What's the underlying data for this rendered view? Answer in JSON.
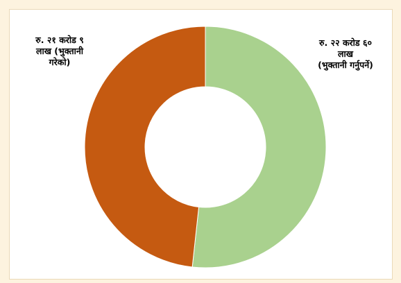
{
  "chart_data": {
    "type": "pie",
    "variant": "donut",
    "slices": [
      {
        "label": "रु. २२ करोड ६०\nलाख\n(भुक्तानी गर्नुपर्ने)",
        "value": 22.6,
        "color": "#a9d18e"
      },
      {
        "label": "रु. २१ करोड ९\nलाख (भुक्तानी\nगरेको)",
        "value": 21.09,
        "color": "#c55a11"
      }
    ],
    "legend": "none"
  }
}
